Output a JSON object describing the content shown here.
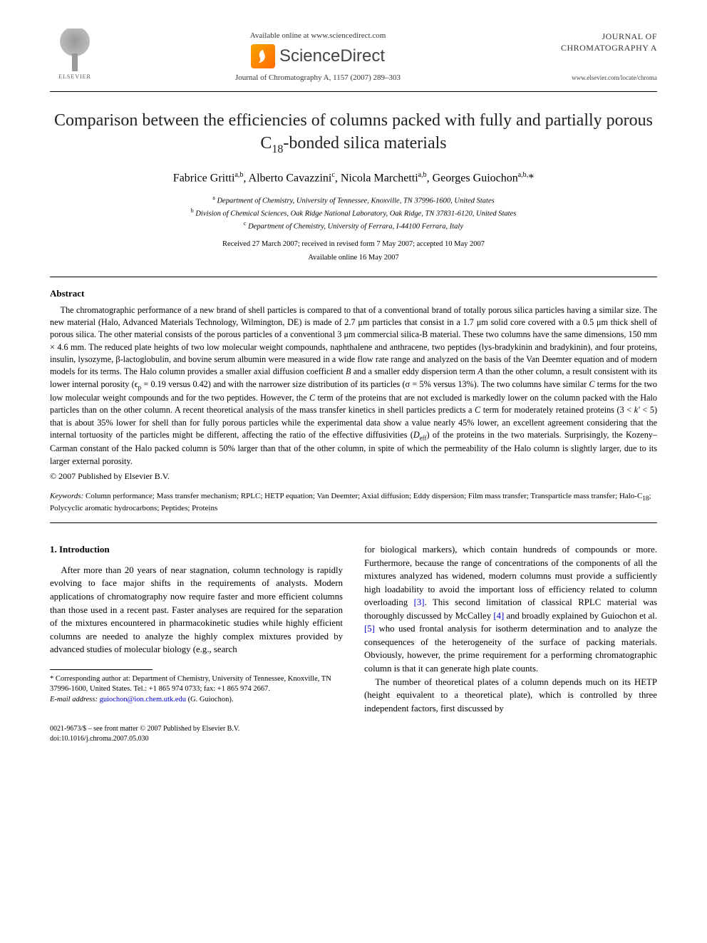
{
  "header": {
    "elsevier_label": "ELSEVIER",
    "availability": "Available online at www.sciencedirect.com",
    "brand_text": "ScienceDirect",
    "journal_ref": "Journal of Chromatography A, 1157 (2007) 289–303",
    "journal_name_line1": "JOURNAL OF",
    "journal_name_line2": "CHROMATOGRAPHY A",
    "journal_url": "www.elsevier.com/locate/chroma"
  },
  "title_html": "Comparison between the efficiencies of columns packed with fully and partially porous C<sub>18</sub>-bonded silica materials",
  "authors_html": "Fabrice Gritti<sup>a,b</sup>, Alberto Cavazzini<sup>c</sup>, Nicola Marchetti<sup>a,b</sup>, Georges Guiochon<sup>a,b,</sup>*",
  "affiliations": {
    "a": "Department of Chemistry, University of Tennessee, Knoxville, TN 37996-1600, United States",
    "b": "Division of Chemical Sciences, Oak Ridge National Laboratory, Oak Ridge, TN 37831-6120, United States",
    "c": "Department of Chemistry, University of Ferrara, I-44100 Ferrara, Italy"
  },
  "dates": {
    "received": "Received 27 March 2007; received in revised form 7 May 2007; accepted 10 May 2007",
    "online": "Available online 16 May 2007"
  },
  "abstract": {
    "heading": "Abstract",
    "body_html": "The chromatographic performance of a new brand of shell particles is compared to that of a conventional brand of totally porous silica particles having a similar size. The new material (Halo, Advanced Materials Technology, Wilmington, DE) is made of 2.7 μm particles that consist in a 1.7 μm solid core covered with a 0.5 μm thick shell of porous silica. The other material consists of the porous particles of a conventional 3 μm commercial silica-B material. These two columns have the same dimensions, 150 mm × 4.6 mm. The reduced plate heights of two low molecular weight compounds, naphthalene and anthracene, two peptides (lys-bradykinin and bradykinin), and four proteins, insulin, lysozyme, β-lactoglobulin, and bovine serum albumin were measured in a wide flow rate range and analyzed on the basis of the Van Deemter equation and of modern models for its terms. The Halo column provides a smaller axial diffusion coefficient <i>B</i> and a smaller eddy dispersion term <i>A</i> than the other column, a result consistent with its lower internal porosity (ϵ<sub>p</sub> = 0.19 versus 0.42) and with the narrower size distribution of its particles (σ = 5% versus 13%). The two columns have similar <i>C</i> terms for the two low molecular weight compounds and for the two peptides. However, the <i>C</i> term of the proteins that are not excluded is markedly lower on the column packed with the Halo particles than on the other column. A recent theoretical analysis of the mass transfer kinetics in shell particles predicts a <i>C</i> term for moderately retained proteins (3 &lt; <i>k′</i> &lt; 5) that is about 35% lower for shell than for fully porous particles while the experimental data show a value nearly 45% lower, an excellent agreement considering that the internal tortuosity of the particles might be different, affecting the ratio of the effective diffusivities (<i>D</i><sub>eff</sub>) of the proteins in the two materials. Surprisingly, the Kozeny–Carman constant of the Halo packed column is 50% larger than that of the other column, in spite of which the permeability of the Halo column is slightly larger, due to its larger external porosity.",
    "copyright": "© 2007 Published by Elsevier B.V."
  },
  "keywords": {
    "label": "Keywords:",
    "text_html": "Column performance; Mass transfer mechanism; RPLC; HETP equation; Van Deemter; Axial diffusion; Eddy dispersion; Film mass transfer; Transparticle mass transfer; Halo-C<sub>18</sub>; Polycyclic aromatic hydrocarbons; Peptides; Proteins"
  },
  "introduction": {
    "heading": "1.  Introduction",
    "col1_html": "After more than 20 years of near stagnation, column technology is rapidly evolving to face major shifts in the requirements of analysts. Modern applications of chromatography now require faster and more efficient columns than those used in a recent past. Faster analyses are required for the separation of the mixtures encountered in pharmacokinetic studies while highly efficient columns are needed to analyze the highly complex mixtures provided by advanced studies of molecular biology (e.g., search",
    "col2_p1_html": "for biological markers), which contain hundreds of compounds or more. Furthermore, because the range of concentrations of the components of all the mixtures analyzed has widened, modern columns must provide a sufficiently high loadability to avoid the important loss of efficiency related to column overloading <a href='#'>[3]</a>. This second limitation of classical RPLC material was thoroughly discussed by McCalley <a href='#'>[4]</a> and broadly explained by Guiochon et al. <a href='#'>[5]</a> who used frontal analysis for isotherm determination and to analyze the consequences of the heterogeneity of the surface of packing materials. Obviously, however, the prime requirement for a performing chromatographic column is that it can generate high plate counts.",
    "col2_p2_html": "The number of theoretical plates of a column depends much on its HETP (height equivalent to a theoretical plate), which is controlled by three independent factors, first discussed by"
  },
  "footnote": {
    "corr_html": "* Corresponding author at: Department of Chemistry, University of Tennessee, Knoxville, TN 37996-1600, United States. Tel.: +1 865 974 0733; fax: +1 865 974 2667.",
    "email_label": "E-mail address:",
    "email": "guiochon@ion.chem.utk.edu",
    "email_attr": "(G. Guiochon)."
  },
  "bottom": {
    "line1": "0021-9673/$ – see front matter © 2007 Published by Elsevier B.V.",
    "line2": "doi:10.1016/j.chroma.2007.05.030"
  }
}
